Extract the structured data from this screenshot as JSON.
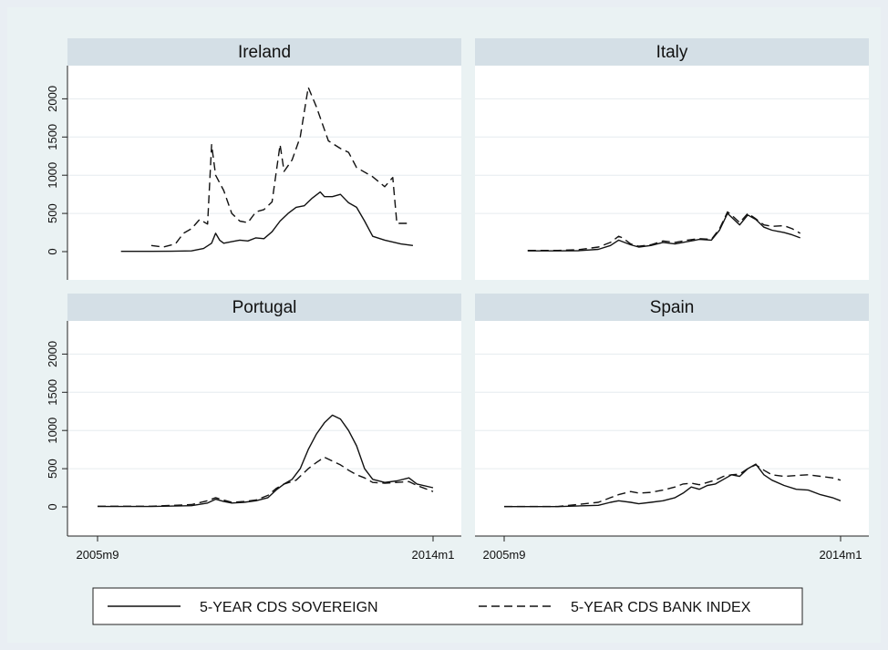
{
  "chart_data": {
    "type": "line",
    "y_ticks": [
      0,
      500,
      1000,
      1500,
      2000
    ],
    "y_tick_labels": [
      "0",
      "500",
      "1000",
      "1500",
      "2000"
    ],
    "x_tick_labels": [
      "2005m9",
      "2014m1"
    ],
    "xlim": [
      2005.667,
      2014.0
    ],
    "ylim": [
      -150,
      2450
    ],
    "legend": {
      "position": "bottom",
      "items": [
        {
          "label": "5-YEAR CDS SOVEREIGN",
          "style": "solid"
        },
        {
          "label": "5-YEAR CDS BANK INDEX",
          "style": "dashed"
        }
      ]
    },
    "panels": [
      {
        "title": "Ireland",
        "series": [
          {
            "style": "solid",
            "points": [
              [
                2006.25,
                3
              ],
              [
                2007.0,
                3
              ],
              [
                2007.5,
                5
              ],
              [
                2008.0,
                10
              ],
              [
                2008.3,
                40
              ],
              [
                2008.5,
                110
              ],
              [
                2008.6,
                240
              ],
              [
                2008.7,
                150
              ],
              [
                2008.8,
                110
              ],
              [
                2009.0,
                130
              ],
              [
                2009.2,
                150
              ],
              [
                2009.4,
                140
              ],
              [
                2009.6,
                180
              ],
              [
                2009.8,
                170
              ],
              [
                2010.0,
                260
              ],
              [
                2010.2,
                400
              ],
              [
                2010.4,
                500
              ],
              [
                2010.6,
                580
              ],
              [
                2010.8,
                600
              ],
              [
                2011.0,
                700
              ],
              [
                2011.2,
                780
              ],
              [
                2011.3,
                720
              ],
              [
                2011.5,
                720
              ],
              [
                2011.7,
                750
              ],
              [
                2011.9,
                640
              ],
              [
                2012.1,
                580
              ],
              [
                2012.3,
                400
              ],
              [
                2012.5,
                200
              ],
              [
                2012.8,
                150
              ],
              [
                2013.2,
                100
              ],
              [
                2013.5,
                80
              ]
            ]
          },
          {
            "style": "dashed",
            "points": [
              [
                2007.0,
                80
              ],
              [
                2007.3,
                60
              ],
              [
                2007.6,
                100
              ],
              [
                2007.8,
                240
              ],
              [
                2008.0,
                300
              ],
              [
                2008.2,
                420
              ],
              [
                2008.4,
                360
              ],
              [
                2008.5,
                1400
              ],
              [
                2008.6,
                1000
              ],
              [
                2008.8,
                800
              ],
              [
                2009.0,
                500
              ],
              [
                2009.2,
                400
              ],
              [
                2009.4,
                380
              ],
              [
                2009.6,
                520
              ],
              [
                2009.8,
                550
              ],
              [
                2010.0,
                650
              ],
              [
                2010.2,
                1400
              ],
              [
                2010.3,
                1050
              ],
              [
                2010.5,
                1200
              ],
              [
                2010.7,
                1500
              ],
              [
                2010.9,
                2150
              ],
              [
                2011.1,
                1900
              ],
              [
                2011.4,
                1450
              ],
              [
                2011.7,
                1350
              ],
              [
                2011.9,
                1300
              ],
              [
                2012.1,
                1100
              ],
              [
                2012.5,
                980
              ],
              [
                2012.8,
                850
              ],
              [
                2013.0,
                970
              ],
              [
                2013.1,
                370
              ],
              [
                2013.4,
                370
              ]
            ]
          }
        ]
      },
      {
        "title": "Italy",
        "series": [
          {
            "style": "solid",
            "points": [
              [
                2006.25,
                10
              ],
              [
                2007.0,
                10
              ],
              [
                2007.5,
                12
              ],
              [
                2008.0,
                30
              ],
              [
                2008.3,
                80
              ],
              [
                2008.5,
                150
              ],
              [
                2008.6,
                130
              ],
              [
                2008.8,
                90
              ],
              [
                2009.0,
                60
              ],
              [
                2009.3,
                80
              ],
              [
                2009.6,
                120
              ],
              [
                2009.9,
                100
              ],
              [
                2010.2,
                130
              ],
              [
                2010.5,
                160
              ],
              [
                2010.8,
                150
              ],
              [
                2011.0,
                280
              ],
              [
                2011.2,
                500
              ],
              [
                2011.3,
                450
              ],
              [
                2011.5,
                350
              ],
              [
                2011.7,
                480
              ],
              [
                2011.9,
                420
              ],
              [
                2012.1,
                320
              ],
              [
                2012.3,
                280
              ],
              [
                2012.6,
                250
              ],
              [
                2012.8,
                220
              ],
              [
                2013.0,
                180
              ]
            ]
          },
          {
            "style": "dashed",
            "points": [
              [
                2006.25,
                15
              ],
              [
                2007.0,
                15
              ],
              [
                2007.5,
                25
              ],
              [
                2008.0,
                60
              ],
              [
                2008.3,
                120
              ],
              [
                2008.5,
                200
              ],
              [
                2008.6,
                180
              ],
              [
                2008.8,
                100
              ],
              [
                2009.0,
                70
              ],
              [
                2009.3,
                90
              ],
              [
                2009.6,
                140
              ],
              [
                2009.9,
                120
              ],
              [
                2010.2,
                150
              ],
              [
                2010.5,
                170
              ],
              [
                2010.8,
                160
              ],
              [
                2011.0,
                300
              ],
              [
                2011.2,
                520
              ],
              [
                2011.3,
                480
              ],
              [
                2011.5,
                380
              ],
              [
                2011.7,
                500
              ],
              [
                2011.9,
                430
              ],
              [
                2012.1,
                350
              ],
              [
                2012.3,
                330
              ],
              [
                2012.6,
                340
              ],
              [
                2012.8,
                300
              ],
              [
                2013.0,
                240
              ]
            ]
          }
        ]
      },
      {
        "title": "Portugal",
        "series": [
          {
            "style": "solid",
            "points": [
              [
                2005.667,
                5
              ],
              [
                2007.0,
                5
              ],
              [
                2008.0,
                15
              ],
              [
                2008.4,
                50
              ],
              [
                2008.6,
                100
              ],
              [
                2008.8,
                70
              ],
              [
                2009.0,
                50
              ],
              [
                2009.3,
                60
              ],
              [
                2009.6,
                80
              ],
              [
                2009.9,
                120
              ],
              [
                2010.1,
                220
              ],
              [
                2010.3,
                300
              ],
              [
                2010.5,
                360
              ],
              [
                2010.7,
                500
              ],
              [
                2010.9,
                750
              ],
              [
                2011.1,
                950
              ],
              [
                2011.3,
                1100
              ],
              [
                2011.5,
                1200
              ],
              [
                2011.7,
                1150
              ],
              [
                2011.9,
                1000
              ],
              [
                2012.1,
                800
              ],
              [
                2012.3,
                500
              ],
              [
                2012.5,
                360
              ],
              [
                2012.8,
                320
              ],
              [
                2013.1,
                340
              ],
              [
                2013.4,
                380
              ],
              [
                2013.6,
                300
              ],
              [
                2014.0,
                250
              ]
            ]
          },
          {
            "style": "dashed",
            "points": [
              [
                2005.667,
                8
              ],
              [
                2007.0,
                8
              ],
              [
                2008.0,
                30
              ],
              [
                2008.4,
                80
              ],
              [
                2008.6,
                120
              ],
              [
                2008.8,
                90
              ],
              [
                2009.0,
                60
              ],
              [
                2009.3,
                70
              ],
              [
                2009.6,
                90
              ],
              [
                2009.9,
                150
              ],
              [
                2010.1,
                240
              ],
              [
                2010.3,
                300
              ],
              [
                2010.6,
                350
              ],
              [
                2010.9,
                500
              ],
              [
                2011.1,
                580
              ],
              [
                2011.3,
                650
              ],
              [
                2011.5,
                600
              ],
              [
                2011.7,
                550
              ],
              [
                2011.9,
                480
              ],
              [
                2012.1,
                420
              ],
              [
                2012.3,
                380
              ],
              [
                2012.5,
                320
              ],
              [
                2012.8,
                310
              ],
              [
                2013.1,
                320
              ],
              [
                2013.4,
                330
              ],
              [
                2013.6,
                280
              ],
              [
                2014.0,
                200
              ]
            ]
          }
        ]
      },
      {
        "title": "Spain",
        "series": [
          {
            "style": "solid",
            "points": [
              [
                2005.667,
                3
              ],
              [
                2007.0,
                3
              ],
              [
                2008.0,
                20
              ],
              [
                2008.3,
                60
              ],
              [
                2008.5,
                80
              ],
              [
                2008.8,
                60
              ],
              [
                2009.0,
                40
              ],
              [
                2009.3,
                60
              ],
              [
                2009.6,
                80
              ],
              [
                2009.9,
                120
              ],
              [
                2010.1,
                180
              ],
              [
                2010.3,
                260
              ],
              [
                2010.5,
                230
              ],
              [
                2010.7,
                280
              ],
              [
                2010.9,
                300
              ],
              [
                2011.1,
                360
              ],
              [
                2011.3,
                420
              ],
              [
                2011.5,
                400
              ],
              [
                2011.7,
                500
              ],
              [
                2011.9,
                560
              ],
              [
                2012.1,
                420
              ],
              [
                2012.3,
                350
              ],
              [
                2012.6,
                280
              ],
              [
                2012.9,
                230
              ],
              [
                2013.2,
                220
              ],
              [
                2013.5,
                160
              ],
              [
                2013.8,
                120
              ],
              [
                2014.0,
                80
              ]
            ]
          },
          {
            "style": "dashed",
            "points": [
              [
                2005.667,
                5
              ],
              [
                2007.0,
                5
              ],
              [
                2008.0,
                60
              ],
              [
                2008.3,
                120
              ],
              [
                2008.5,
                160
              ],
              [
                2008.8,
                200
              ],
              [
                2009.0,
                180
              ],
              [
                2009.3,
                190
              ],
              [
                2009.6,
                220
              ],
              [
                2009.9,
                260
              ],
              [
                2010.1,
                300
              ],
              [
                2010.3,
                310
              ],
              [
                2010.5,
                290
              ],
              [
                2010.7,
                320
              ],
              [
                2010.9,
                350
              ],
              [
                2011.1,
                400
              ],
              [
                2011.3,
                420
              ],
              [
                2011.5,
                430
              ],
              [
                2011.7,
                500
              ],
              [
                2011.9,
                550
              ],
              [
                2012.1,
                480
              ],
              [
                2012.3,
                420
              ],
              [
                2012.6,
                400
              ],
              [
                2012.9,
                410
              ],
              [
                2013.2,
                420
              ],
              [
                2013.5,
                400
              ],
              [
                2013.8,
                380
              ],
              [
                2014.0,
                350
              ]
            ]
          }
        ]
      }
    ]
  }
}
